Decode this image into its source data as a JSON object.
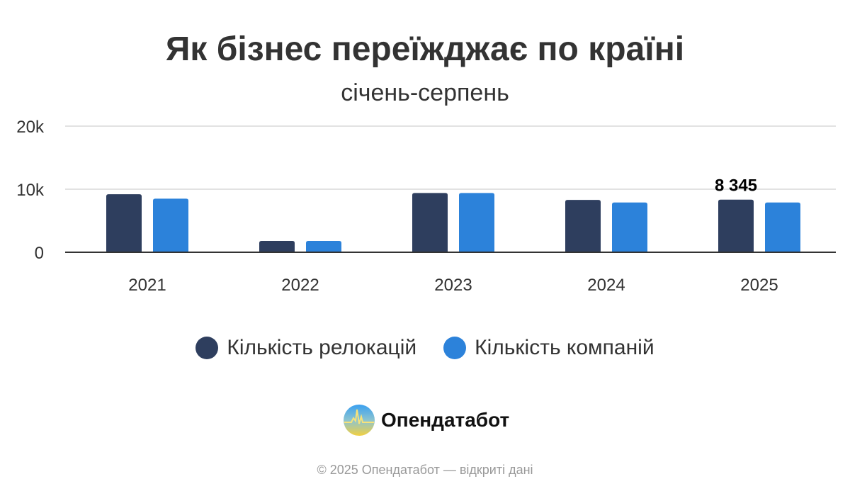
{
  "chart_data": {
    "type": "bar",
    "title": "Як бізнес переїжджає по країні",
    "subtitle": "січень-серпень",
    "categories": [
      "2021",
      "2022",
      "2023",
      "2024",
      "2025"
    ],
    "series": [
      {
        "name": "Кількість релокацій",
        "color": "#2e3e5e",
        "values": [
          9200,
          1800,
          9400,
          8300,
          8345
        ]
      },
      {
        "name": "Кількість компаній",
        "color": "#2c82da",
        "values": [
          8500,
          1800,
          9400,
          7900,
          7900
        ]
      }
    ],
    "data_labels": [
      {
        "series": 0,
        "category": "2025",
        "text": "8 345"
      }
    ],
    "ylim": [
      0,
      20000
    ],
    "yticks": [
      0,
      10000,
      20000
    ],
    "ytick_labels": [
      "0",
      "10k",
      "20k"
    ],
    "xlabel": "",
    "ylabel": "",
    "grid": true,
    "legend": "bottom"
  },
  "branding": {
    "logo_text": "Опендатабот"
  },
  "footer": "© 2025 Опендатабот — відкриті дані"
}
